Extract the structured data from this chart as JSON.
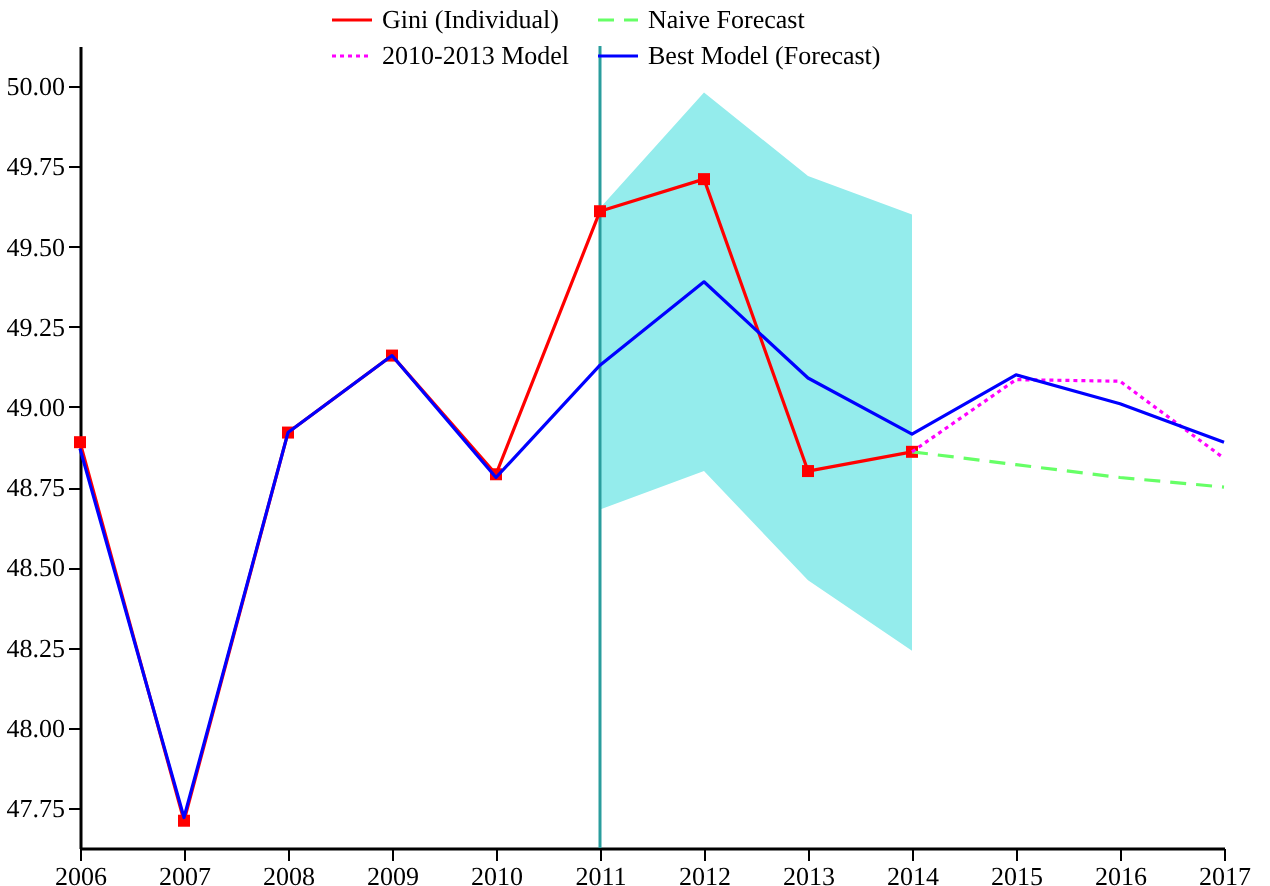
{
  "chart_data": {
    "type": "line",
    "legend": "top",
    "line_style": "solid",
    "xlim": [
      2006,
      2017
    ],
    "xticks": [
      2006,
      2007,
      2008,
      2009,
      2010,
      2011,
      2012,
      2013,
      2014,
      2015,
      2016,
      2017
    ],
    "ylim": [
      47.625,
      50.125
    ],
    "yticks": [
      {
        "value": 47.75,
        "label": "47.75"
      },
      {
        "value": 48,
        "label": "48.00"
      },
      {
        "value": 48.25,
        "label": "48.25"
      },
      {
        "value": 48.5,
        "label": "48.50"
      },
      {
        "value": 48.75,
        "label": "48.75"
      },
      {
        "value": 49,
        "label": "49.00"
      },
      {
        "value": 49.25,
        "label": "49.25"
      },
      {
        "value": 49.5,
        "label": "49.50"
      },
      {
        "value": 49.75,
        "label": "49.75"
      },
      {
        "value": 50,
        "label": "50.00"
      }
    ],
    "ref_lines": [
      {
        "axis": "x",
        "value": 2011,
        "label": null,
        "color": "#2a9d9d"
      }
    ],
    "series": [
      {
        "name": "Gini (Individual)",
        "color": "#ff0000",
        "marker": "square",
        "x": [
          2006,
          2007,
          2008,
          2009,
          2010,
          2011,
          2012,
          2013,
          2014
        ],
        "values": [
          48.89,
          47.71,
          48.92,
          49.16,
          48.79,
          49.61,
          49.71,
          48.8,
          48.86
        ]
      },
      {
        "name": "Naive Forecast",
        "color": "#66ff66",
        "line_style": "dashed",
        "x": [
          2014,
          2015,
          2016,
          2017
        ],
        "values": [
          48.86,
          48.82,
          48.78,
          48.75
        ]
      },
      {
        "name": "2010-2013 Model",
        "color": "#ff00ff",
        "line_style": "dotted",
        "x": [
          2014,
          2015,
          2016,
          2017
        ],
        "values": [
          48.86,
          49.085,
          49.08,
          48.84
        ]
      },
      {
        "name": "Best Model (Forecast)",
        "color": "#0000ff",
        "x": [
          2006,
          2007,
          2008,
          2009,
          2010,
          2011,
          2012,
          2013,
          2014,
          2015,
          2016,
          2017
        ],
        "values": [
          48.87,
          47.72,
          48.92,
          49.16,
          48.78,
          49.13,
          49.39,
          49.09,
          48.915,
          49.1,
          49.01,
          48.89
        ],
        "lower": [
          null,
          null,
          null,
          null,
          null,
          48.68,
          48.8,
          48.46,
          48.24,
          null,
          null,
          null
        ],
        "upper": [
          null,
          null,
          null,
          null,
          null,
          49.62,
          49.98,
          49.72,
          49.6,
          null,
          null,
          null
        ]
      }
    ]
  }
}
